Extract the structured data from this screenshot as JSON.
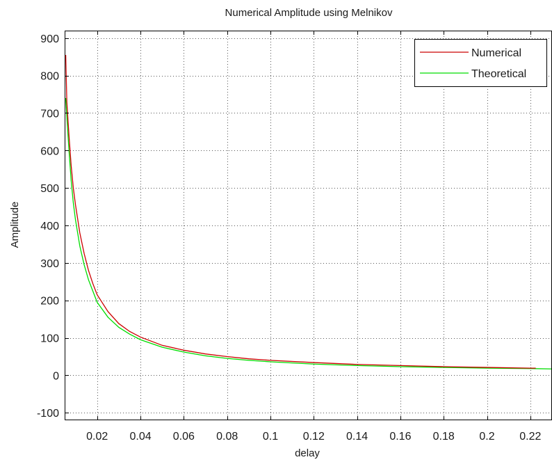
{
  "chart_data": {
    "type": "line",
    "title": "Numerical Amplitude using Melnikov",
    "xlabel": "delay",
    "ylabel": "Amplitude",
    "xlim": [
      0.005,
      0.23
    ],
    "ylim": [
      -120,
      920
    ],
    "xticks": [
      0.02,
      0.04,
      0.06,
      0.08,
      0.1,
      0.12,
      0.14,
      0.16,
      0.18,
      0.2,
      0.22
    ],
    "xtick_labels": [
      "0.02",
      "0.04",
      "0.06",
      "0.08",
      "0.1",
      "0.12",
      "0.14",
      "0.16",
      "0.18",
      "0.2",
      "0.22"
    ],
    "yticks": [
      -100,
      0,
      100,
      200,
      300,
      400,
      500,
      600,
      700,
      800,
      900
    ],
    "ytick_labels": [
      "-100",
      "0",
      "100",
      "200",
      "300",
      "400",
      "500",
      "600",
      "700",
      "800",
      "900"
    ],
    "grid": true,
    "legend_position": "top-right",
    "series": [
      {
        "name": "Numerical",
        "color": "#cc0000",
        "x": [
          0.0055,
          0.006,
          0.007,
          0.008,
          0.009,
          0.01,
          0.012,
          0.014,
          0.016,
          0.018,
          0.02,
          0.025,
          0.03,
          0.035,
          0.04,
          0.05,
          0.06,
          0.07,
          0.08,
          0.09,
          0.1,
          0.12,
          0.14,
          0.16,
          0.18,
          0.2,
          0.22,
          0.2225
        ],
        "y": [
          855,
          730,
          640,
          560,
          500,
          455,
          380,
          325,
          280,
          245,
          215,
          170,
          138,
          117,
          102,
          80,
          67,
          57,
          50,
          44,
          40,
          34,
          29,
          26,
          23,
          21,
          19,
          19
        ]
      },
      {
        "name": "Theoretical",
        "color": "#00dd00",
        "x": [
          0.0055,
          0.006,
          0.007,
          0.008,
          0.009,
          0.01,
          0.012,
          0.014,
          0.016,
          0.018,
          0.02,
          0.025,
          0.03,
          0.035,
          0.04,
          0.05,
          0.06,
          0.07,
          0.08,
          0.09,
          0.1,
          0.12,
          0.14,
          0.16,
          0.18,
          0.2,
          0.22,
          0.23
        ],
        "y": [
          740,
          690,
          600,
          520,
          460,
          415,
          345,
          295,
          255,
          225,
          195,
          155,
          128,
          110,
          95,
          75,
          62,
          52,
          45,
          40,
          36,
          30,
          26,
          23,
          21,
          19,
          18,
          17
        ]
      }
    ]
  }
}
